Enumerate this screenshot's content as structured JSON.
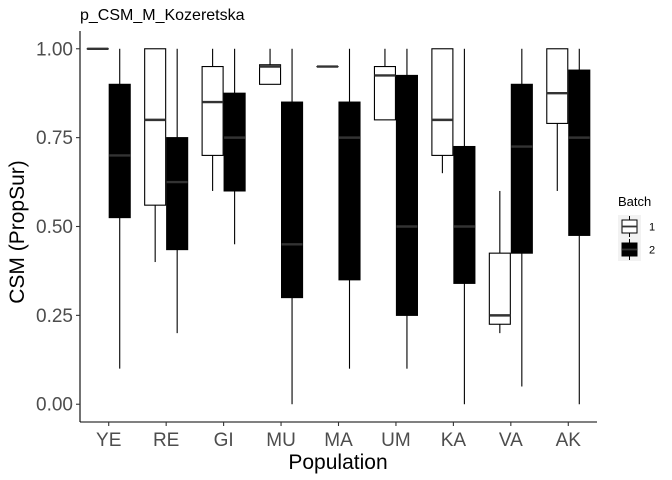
{
  "chart_data": {
    "type": "box",
    "title": "p_CSM_M_Kozeretska",
    "xlabel": "Population",
    "ylabel": "CSM (PropSur)",
    "ylim": [
      -0.05,
      1.05
    ],
    "yticks": [
      0,
      0.25,
      0.5,
      0.75,
      1
    ],
    "yticklabels": [
      "0.00",
      "0.25",
      "0.50",
      "0.75",
      "1.00"
    ],
    "grid": false,
    "categories": [
      "YE",
      "RE",
      "GI",
      "MU",
      "MA",
      "UM",
      "KA",
      "VA",
      "AK"
    ],
    "legend": {
      "title": "Batch",
      "position": "right"
    },
    "series": [
      {
        "name": "1",
        "fill": "#ffffff",
        "stroke": "#000000",
        "median_color": "#333333",
        "boxes": [
          {
            "min": 1.0,
            "q1": 1.0,
            "median": 1.0,
            "q3": 1.0,
            "max": 1.0
          },
          {
            "min": 0.4,
            "q1": 0.56,
            "median": 0.8,
            "q3": 1.0,
            "max": 1.0
          },
          {
            "min": 0.6,
            "q1": 0.7,
            "median": 0.85,
            "q3": 0.95,
            "max": 1.0
          },
          {
            "min": 0.9,
            "q1": 0.9,
            "median": 0.95,
            "q3": 0.955,
            "max": 1.0
          },
          {
            "min": 0.95,
            "q1": 0.95,
            "median": 0.95,
            "q3": 0.95,
            "max": 0.95
          },
          {
            "min": 0.8,
            "q1": 0.8,
            "median": 0.925,
            "q3": 0.95,
            "max": 1.0
          },
          {
            "min": 0.65,
            "q1": 0.7,
            "median": 0.8,
            "q3": 1.0,
            "max": 1.0
          },
          {
            "min": 0.2,
            "q1": 0.225,
            "median": 0.25,
            "q3": 0.425,
            "max": 0.6
          },
          {
            "min": 0.6,
            "q1": 0.79,
            "median": 0.875,
            "q3": 1.0,
            "max": 1.0
          }
        ]
      },
      {
        "name": "2",
        "fill": "#000000",
        "stroke": "#000000",
        "median_color": "#333333",
        "boxes": [
          {
            "min": 0.1,
            "q1": 0.525,
            "median": 0.7,
            "q3": 0.9,
            "max": 1.0
          },
          {
            "min": 0.2,
            "q1": 0.435,
            "median": 0.625,
            "q3": 0.75,
            "max": 1.0
          },
          {
            "min": 0.45,
            "q1": 0.6,
            "median": 0.75,
            "q3": 0.875,
            "max": 1.0
          },
          {
            "min": 0.0,
            "q1": 0.3,
            "median": 0.45,
            "q3": 0.85,
            "max": 1.0
          },
          {
            "min": 0.1,
            "q1": 0.35,
            "median": 0.75,
            "q3": 0.85,
            "max": 1.0
          },
          {
            "min": 0.1,
            "q1": 0.25,
            "median": 0.5,
            "q3": 0.925,
            "max": 1.0
          },
          {
            "min": 0.0,
            "q1": 0.34,
            "median": 0.5,
            "q3": 0.725,
            "max": 1.0
          },
          {
            "min": 0.05,
            "q1": 0.425,
            "median": 0.725,
            "q3": 0.9,
            "max": 1.0
          },
          {
            "min": 0.0,
            "q1": 0.475,
            "median": 0.75,
            "q3": 0.94,
            "max": 1.0
          }
        ]
      }
    ]
  }
}
